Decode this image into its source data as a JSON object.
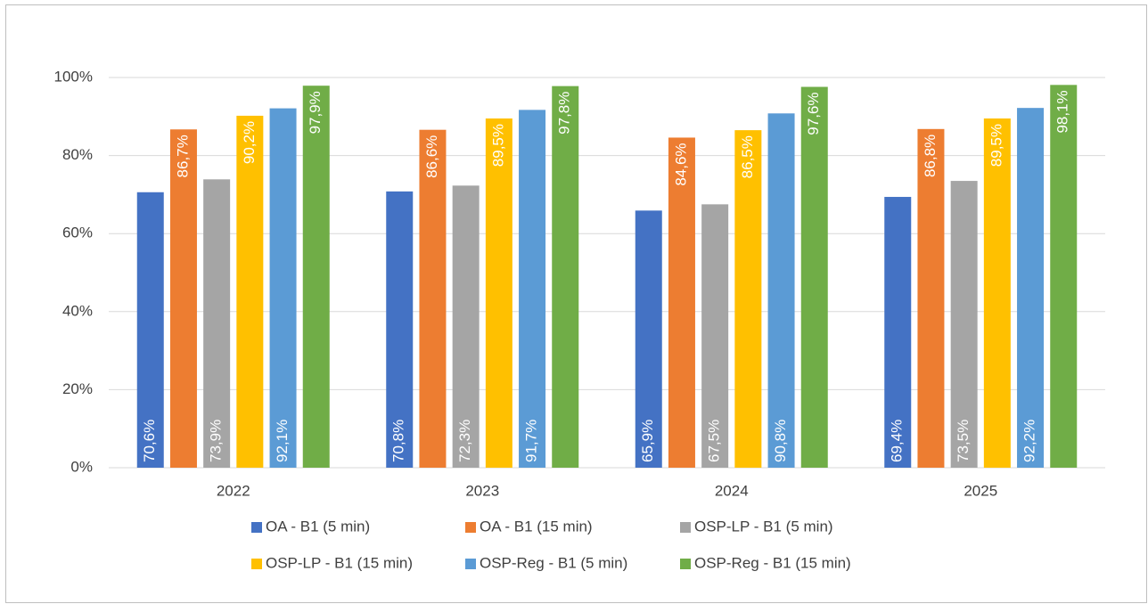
{
  "chart_data": {
    "type": "bar",
    "categories": [
      "2022",
      "2023",
      "2024",
      "2025"
    ],
    "series": [
      {
        "name": "OA - B1 (5 min)",
        "color": "#4472c4",
        "values": [
          70.6,
          70.8,
          65.9,
          69.4
        ],
        "value_labels": [
          "70,6%",
          "70,8%",
          "65,9%",
          "69,4%"
        ]
      },
      {
        "name": "OA - B1 (15 min)",
        "color": "#ed7d31",
        "values": [
          86.7,
          86.6,
          84.6,
          86.8
        ],
        "value_labels": [
          "86,7%",
          "86,6%",
          "84,6%",
          "86,8%"
        ]
      },
      {
        "name": "OSP-LP - B1 (5 min)",
        "color": "#a5a5a5",
        "values": [
          73.9,
          72.3,
          67.5,
          73.5
        ],
        "value_labels": [
          "73,9%",
          "72,3%",
          "67,5%",
          "73,5%"
        ]
      },
      {
        "name": "OSP-LP - B1 (15 min)",
        "color": "#ffc000",
        "values": [
          90.2,
          89.5,
          86.5,
          89.5
        ],
        "value_labels": [
          "90,2%",
          "89,5%",
          "86,5%",
          "89,5%"
        ]
      },
      {
        "name": "OSP-Reg - B1 (5 min)",
        "color": "#5b9bd5",
        "values": [
          92.1,
          91.7,
          90.8,
          92.2
        ],
        "value_labels": [
          "92,1%",
          "91,7%",
          "90,8%",
          "92,2%"
        ]
      },
      {
        "name": "OSP-Reg - B1 (15 min)",
        "color": "#70ad47",
        "values": [
          97.9,
          97.8,
          97.6,
          98.1
        ],
        "value_labels": [
          "97,9%",
          "97,8%",
          "97,6%",
          "98,1%"
        ]
      }
    ],
    "ylim": [
      0,
      100
    ],
    "yticks": [
      {
        "value": 0,
        "label": "0%"
      },
      {
        "value": 20,
        "label": "20%"
      },
      {
        "value": 40,
        "label": "40%"
      },
      {
        "value": 60,
        "label": "60%"
      },
      {
        "value": 80,
        "label": "80%"
      },
      {
        "value": 100,
        "label": "100%"
      }
    ],
    "grid": true,
    "legend": "bottom"
  }
}
